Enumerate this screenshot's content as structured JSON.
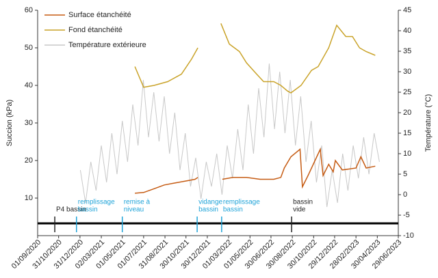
{
  "chart_data": {
    "type": "line",
    "ylabel": "Succion (kPa)",
    "y2label": "Température (°C)",
    "xlim": [
      "2020-09-01",
      "2023-06-29"
    ],
    "xticks": [
      {
        "value": "2020-09-01",
        "label": "01/09/2020"
      },
      {
        "value": "2020-10-31",
        "label": "31/10/2020"
      },
      {
        "value": "2020-12-31",
        "label": "31/12/2020"
      },
      {
        "value": "2021-03-02",
        "label": "02/03/2021"
      },
      {
        "value": "2021-05-01",
        "label": "01/05/2021"
      },
      {
        "value": "2021-07-01",
        "label": "01/07/2021"
      },
      {
        "value": "2021-08-31",
        "label": "31/08/2021"
      },
      {
        "value": "2021-10-30",
        "label": "30/10/2021"
      },
      {
        "value": "2021-12-30",
        "label": "30/12/2021"
      },
      {
        "value": "2022-03-01",
        "label": "01/03/2022"
      },
      {
        "value": "2022-05-01",
        "label": "01/05/2022"
      },
      {
        "value": "2022-06-30",
        "label": "30/06/2022"
      },
      {
        "value": "2022-08-30",
        "label": "30/08/2022"
      },
      {
        "value": "2022-10-30",
        "label": "30/10/2022"
      },
      {
        "value": "2022-12-29",
        "label": "29/12/2022"
      },
      {
        "value": "2023-02-28",
        "label": "28/02/2023"
      },
      {
        "value": "2023-04-30",
        "label": "30/04/2023"
      },
      {
        "value": "2023-06-29",
        "label": "29/06/2023"
      }
    ],
    "ylim": [
      0,
      60
    ],
    "yticks": [
      10,
      20,
      30,
      40,
      50,
      60
    ],
    "y2lim": [
      -10,
      45
    ],
    "y2ticks": [
      -10,
      -5,
      0,
      5,
      10,
      15,
      20,
      25,
      30,
      35,
      40,
      45
    ],
    "legend": "top-left",
    "series": [
      {
        "name": "Surface étanchéité",
        "color": "#c55a11",
        "x": [
          "2021-06-06",
          "2021-07-01",
          "2021-07-31",
          "2021-08-29",
          "2021-09-27",
          "2021-10-27",
          "2021-11-25",
          "2021-12-03",
          "2022-01-10",
          "2022-02-11",
          "2022-03-13",
          "2022-04-21",
          "2022-05-30",
          "2022-07-08",
          "2022-07-28",
          "2022-08-07",
          "2022-08-26",
          "2022-09-21",
          "2022-09-28",
          "2022-10-14",
          "2022-11-03",
          "2022-11-18",
          "2022-11-26",
          "2022-12-12",
          "2022-12-25",
          "2022-12-31",
          "2023-01-20",
          "2023-02-28",
          "2023-03-14",
          "2023-03-29",
          "2023-04-24"
        ],
        "values": [
          11.3,
          11.5,
          12.5,
          13.5,
          14,
          14.5,
          15,
          15.5,
          null,
          15,
          15.5,
          15.5,
          15,
          15,
          15.5,
          18,
          21,
          23,
          13,
          16,
          20,
          23,
          16,
          19,
          17,
          20,
          17.5,
          18,
          21,
          18,
          18.5
        ]
      },
      {
        "name": "Fond étanchéité",
        "color": "#c9a227",
        "x": [
          "2021-06-06",
          "2021-07-01",
          "2021-07-31",
          "2021-09-08",
          "2021-10-17",
          "2021-11-15",
          "2021-12-03",
          "2022-01-10",
          "2022-02-07",
          "2022-03-03",
          "2022-04-01",
          "2022-04-21",
          "2022-05-20",
          "2022-06-09",
          "2022-07-08",
          "2022-07-28",
          "2022-08-16",
          "2022-08-26",
          "2022-09-24",
          "2022-10-24",
          "2022-11-12",
          "2022-12-12",
          "2023-01-04",
          "2023-01-30",
          "2023-02-18",
          "2023-03-10",
          "2023-03-29",
          "2023-04-24"
        ],
        "values": [
          45,
          39.5,
          40,
          41,
          43,
          47,
          50,
          null,
          56.5,
          51,
          49,
          46,
          43,
          41,
          41,
          40,
          38.5,
          38,
          40,
          44,
          45,
          50,
          56,
          53,
          53,
          50,
          49,
          48
        ]
      },
      {
        "name": "Température extérieure",
        "color": "#c8c8c8",
        "axis": "y2",
        "x": [
          "2021-01-01",
          "2021-01-16",
          "2021-01-31",
          "2021-02-15",
          "2021-03-02",
          "2021-03-17",
          "2021-04-01",
          "2021-04-16",
          "2021-05-01",
          "2021-05-16",
          "2021-05-31",
          "2021-06-15",
          "2021-06-30",
          "2021-07-15",
          "2021-07-30",
          "2021-08-14",
          "2021-08-29",
          "2021-09-13",
          "2021-09-28",
          "2021-10-13",
          "2021-10-28",
          "2021-11-12",
          "2021-11-27",
          "2021-12-12",
          "2021-12-27",
          "2022-01-11",
          "2022-01-26",
          "2022-02-10",
          "2022-02-25",
          "2022-03-12",
          "2022-03-27",
          "2022-04-11",
          "2022-04-26",
          "2022-05-11",
          "2022-05-26",
          "2022-06-10",
          "2022-06-25",
          "2022-07-10",
          "2022-07-25",
          "2022-08-09",
          "2022-08-24",
          "2022-09-08",
          "2022-09-23",
          "2022-10-08",
          "2022-10-23",
          "2022-11-07",
          "2022-11-22",
          "2022-12-07",
          "2022-12-22",
          "2023-01-06",
          "2023-01-21",
          "2023-02-05",
          "2023-02-20",
          "2023-03-07",
          "2023-03-22",
          "2023-04-06",
          "2023-04-21",
          "2023-05-06"
        ],
        "values": [
          6,
          -2,
          8,
          1,
          12,
          3,
          15,
          5,
          18,
          8,
          22,
          12,
          28,
          14,
          25,
          13,
          24,
          10,
          20,
          6,
          15,
          2,
          9,
          -1,
          8,
          2,
          10,
          0,
          12,
          4,
          16,
          6,
          22,
          10,
          26,
          14,
          32,
          16,
          30,
          15,
          28,
          12,
          24,
          8,
          18,
          3,
          12,
          -3,
          6,
          -2,
          10,
          1,
          12,
          4,
          14,
          5,
          15,
          8
        ]
      }
    ],
    "annotations": [
      {
        "x": "2020-10-20",
        "label": [
          "P4 bassin"
        ],
        "color": "#222222"
      },
      {
        "x": "2020-12-21",
        "label": [
          "remplissage",
          "bassin"
        ],
        "color": "#1fa3d8"
      },
      {
        "x": "2021-05-01",
        "label": [
          "remise à",
          "niveau"
        ],
        "color": "#1fa3d8"
      },
      {
        "x": "2021-12-01",
        "label": [
          "vidange",
          "bassin"
        ],
        "color": "#1fa3d8"
      },
      {
        "x": "2022-02-09",
        "label": [
          "remplissage",
          "bassin"
        ],
        "color": "#1fa3d8"
      },
      {
        "x": "2022-08-28",
        "label": [
          "bassin",
          "vide"
        ],
        "color": "#222222"
      }
    ]
  }
}
